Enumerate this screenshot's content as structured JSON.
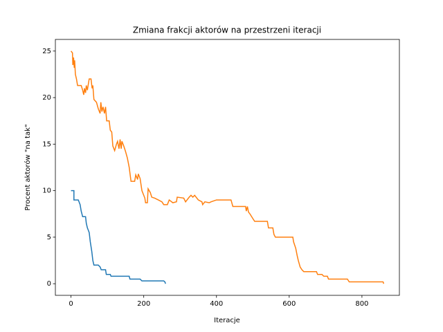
{
  "chart_data": {
    "type": "line",
    "title": "Zmiana frakcji aktorów na przestrzeni iteracji",
    "xlabel": "Iteracje",
    "ylabel": "Procent aktorów \"na tak\"",
    "xlim": [
      -43,
      903
    ],
    "ylim": [
      -1.25,
      26.25
    ],
    "xticks": [
      0,
      200,
      400,
      600,
      800
    ],
    "yticks": [
      0,
      5,
      10,
      15,
      20,
      25
    ],
    "series": [
      {
        "color": "#1f77b4",
        "x": [
          0,
          8,
          8,
          20,
          22,
          25,
          28,
          32,
          40,
          42,
          45,
          50,
          53,
          57,
          60,
          63,
          75,
          80,
          83,
          95,
          97,
          108,
          110,
          160,
          162,
          190,
          195,
          255,
          258,
          260
        ],
        "values": [
          10,
          10,
          9,
          9,
          8.8,
          8.5,
          7.8,
          7.2,
          7.2,
          6.5,
          6,
          5.5,
          4.5,
          3.5,
          2.5,
          2,
          2,
          1.8,
          1.5,
          1.5,
          1,
          1,
          0.8,
          0.8,
          0.5,
          0.5,
          0.3,
          0.3,
          0.2,
          0
        ]
      },
      {
        "color": "#ff7f0e",
        "x": [
          0,
          4,
          5,
          7,
          9,
          10,
          12,
          15,
          18,
          28,
          32,
          35,
          37,
          40,
          42,
          45,
          47,
          50,
          55,
          58,
          60,
          63,
          70,
          75,
          80,
          82,
          85,
          88,
          92,
          95,
          98,
          105,
          108,
          112,
          115,
          120,
          125,
          128,
          132,
          135,
          138,
          140,
          145,
          150,
          155,
          160,
          165,
          175,
          178,
          183,
          185,
          190,
          195,
          200,
          203,
          205,
          210,
          212,
          218,
          222,
          230,
          240,
          250,
          255,
          265,
          270,
          280,
          290,
          292,
          310,
          315,
          325,
          330,
          335,
          340,
          350,
          360,
          362,
          368,
          380,
          385,
          400,
          440,
          445,
          480,
          482,
          485,
          488,
          492,
          500,
          505,
          540,
          543,
          555,
          558,
          562,
          610,
          612,
          618,
          622,
          625,
          630,
          635,
          640,
          675,
          678,
          690,
          695,
          705,
          708,
          760,
          765,
          858,
          860
        ],
        "values": [
          25,
          24.8,
          23.5,
          24.3,
          23.2,
          24,
          22.5,
          22,
          21.3,
          21.3,
          20.8,
          20.3,
          21,
          20.5,
          21.3,
          20.8,
          21.3,
          22,
          22,
          21,
          21.3,
          19.8,
          19.5,
          18.8,
          18.3,
          19.5,
          18.5,
          19,
          18.3,
          19,
          17.5,
          17.5,
          16.5,
          16.3,
          14.8,
          14.3,
          15,
          15.3,
          14.5,
          15.5,
          14.5,
          15.3,
          14.8,
          14.2,
          13.5,
          12.5,
          11,
          11,
          11.7,
          11.2,
          11.8,
          11.3,
          10,
          9.5,
          9.2,
          8.7,
          8.7,
          10.2,
          9.8,
          9.3,
          9.2,
          9,
          8.8,
          8.5,
          8.5,
          9,
          8.7,
          8.8,
          9.3,
          9.2,
          8.8,
          9.3,
          9.5,
          9.3,
          9.5,
          9,
          8.8,
          8.5,
          8.8,
          8.7,
          8.8,
          9,
          9,
          8.3,
          8.3,
          7.8,
          8.3,
          7.7,
          7.5,
          7,
          6.7,
          6.7,
          6,
          6,
          5.3,
          5,
          5,
          4.5,
          3.8,
          3,
          2.5,
          1.8,
          1.5,
          1.3,
          1.3,
          1,
          1,
          0.8,
          0.8,
          0.5,
          0.5,
          0.2,
          0.2,
          0
        ]
      }
    ]
  }
}
